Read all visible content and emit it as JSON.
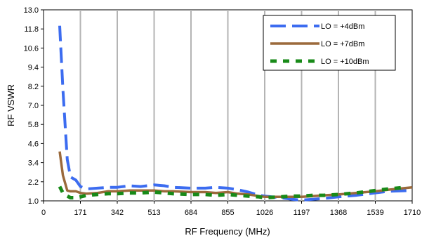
{
  "chart_data": {
    "type": "line",
    "xlabel": "RF Frequency (MHz)",
    "ylabel": "RF VSWR",
    "xlim": [
      0,
      1710
    ],
    "ylim": [
      1.0,
      13.0
    ],
    "x_ticks": [
      "0",
      "171",
      "342",
      "513",
      "684",
      "855",
      "1026",
      "1197",
      "1368",
      "1539",
      "1710"
    ],
    "y_ticks": [
      "1.0",
      "2.2",
      "3.4",
      "4.6",
      "5.8",
      "7.0",
      "8.2",
      "9.4",
      "10.6",
      "11.8",
      "13.0"
    ],
    "grid": "vertical",
    "legend_position": "top-right",
    "series": [
      {
        "name": "LO = +4dBm",
        "color": "#3c6cf0",
        "style": "long-dash",
        "x": [
          75,
          90,
          110,
          125,
          150,
          171,
          200,
          250,
          300,
          342,
          400,
          450,
          513,
          560,
          600,
          684,
          750,
          800,
          855,
          900,
          950,
          1000,
          1026,
          1100,
          1150,
          1197,
          1250,
          1300,
          1368,
          1450,
          1539,
          1600,
          1700
        ],
        "y": [
          12.0,
          8.0,
          3.6,
          2.5,
          2.3,
          1.9,
          1.75,
          1.8,
          1.85,
          1.85,
          1.95,
          1.9,
          2.0,
          1.95,
          1.85,
          1.8,
          1.8,
          1.85,
          1.8,
          1.7,
          1.55,
          1.35,
          1.3,
          1.2,
          1.1,
          1.05,
          1.1,
          1.15,
          1.25,
          1.35,
          1.5,
          1.6,
          1.65
        ]
      },
      {
        "name": "LO = +7dBm",
        "color": "#9b6a3c",
        "style": "solid",
        "x": [
          75,
          90,
          110,
          125,
          150,
          171,
          200,
          250,
          300,
          342,
          400,
          450,
          513,
          560,
          600,
          684,
          750,
          800,
          855,
          900,
          950,
          1000,
          1026,
          1100,
          1150,
          1197,
          1250,
          1300,
          1368,
          1450,
          1539,
          1600,
          1710
        ],
        "y": [
          4.1,
          2.6,
          1.65,
          1.6,
          1.6,
          1.5,
          1.45,
          1.5,
          1.6,
          1.6,
          1.65,
          1.65,
          1.65,
          1.6,
          1.6,
          1.55,
          1.55,
          1.5,
          1.55,
          1.45,
          1.4,
          1.3,
          1.25,
          1.25,
          1.25,
          1.25,
          1.3,
          1.35,
          1.4,
          1.5,
          1.6,
          1.7,
          1.85
        ]
      },
      {
        "name": "LO = +10dBm",
        "color": "#188a18",
        "style": "short-dash",
        "x": [
          75,
          90,
          110,
          125,
          150,
          171,
          200,
          250,
          300,
          342,
          400,
          450,
          513,
          560,
          600,
          684,
          750,
          800,
          855,
          900,
          950,
          1000,
          1026,
          1100,
          1150,
          1197,
          1250,
          1300,
          1368,
          1450,
          1539,
          1600,
          1680
        ],
        "y": [
          1.9,
          1.5,
          1.3,
          1.2,
          1.2,
          1.25,
          1.35,
          1.4,
          1.45,
          1.45,
          1.5,
          1.5,
          1.55,
          1.5,
          1.45,
          1.4,
          1.4,
          1.35,
          1.4,
          1.35,
          1.3,
          1.25,
          1.2,
          1.25,
          1.3,
          1.3,
          1.35,
          1.35,
          1.4,
          1.5,
          1.65,
          1.75,
          1.85
        ]
      }
    ]
  }
}
